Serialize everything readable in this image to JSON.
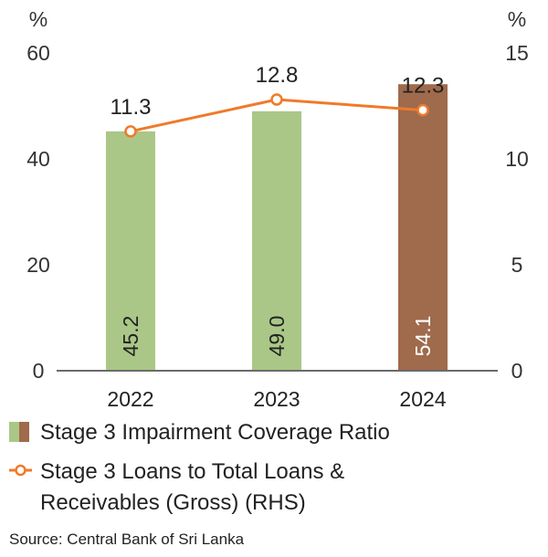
{
  "chart_data": {
    "type": "bar",
    "categories": [
      "2022",
      "2023",
      "2024"
    ],
    "series": [
      {
        "name": "Stage 3 Impairment Coverage Ratio",
        "type": "bar",
        "axis": "left",
        "values": [
          45.2,
          49.0,
          54.1
        ],
        "value_labels": [
          "45.2",
          "49.0",
          "54.1"
        ],
        "colors": [
          "#aac787",
          "#aac787",
          "#9f6b4c"
        ]
      },
      {
        "name": "Stage 3 Loans to Total Loans & Receivables (Gross) (RHS)",
        "legend_lines": [
          "Stage 3 Loans to Total Loans &",
          "Receivables (Gross) (RHS)"
        ],
        "type": "line",
        "axis": "right",
        "values": [
          11.3,
          12.8,
          12.3
        ],
        "value_labels": [
          "11.3",
          "12.8",
          "12.3"
        ],
        "color": "#f07a2a"
      }
    ],
    "y_left": {
      "unit": "%",
      "ticks": [
        "0",
        "20",
        "40",
        "60"
      ],
      "lim": [
        0,
        60
      ]
    },
    "y_right": {
      "unit": "%",
      "ticks": [
        "0",
        "5",
        "10",
        "15"
      ],
      "lim": [
        0,
        15
      ]
    },
    "grid": false,
    "legend_position": "bottom-left"
  },
  "source": "Source: Central Bank of Sri Lanka"
}
